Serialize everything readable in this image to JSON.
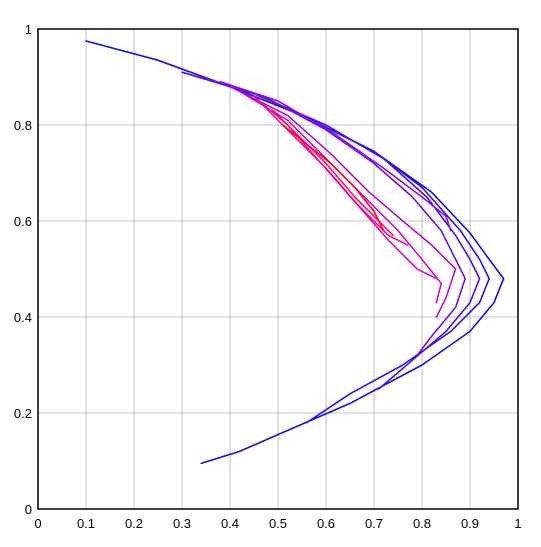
{
  "chart_data": {
    "type": "line",
    "title": "",
    "xlabel": "",
    "ylabel": "",
    "xlim": [
      0,
      1
    ],
    "ylim": [
      0,
      1
    ],
    "grid": true,
    "legend": "none",
    "xticks": [
      "0",
      "0.1",
      "0.2",
      "0.3",
      "0.4",
      "0.5",
      "0.6",
      "0.7",
      "0.8",
      "0.9",
      "1"
    ],
    "yticks": [
      "0",
      "0.2",
      "0.4",
      "0.6",
      "0.8",
      "1"
    ],
    "colors": {
      "background": "#ffffff",
      "grid": "#c0c0c0",
      "frame": "#000000"
    },
    "series": [
      {
        "color": "#1010e0",
        "points": [
          [
            0.1,
            0.975
          ],
          [
            0.25,
            0.935
          ],
          [
            0.4,
            0.88
          ],
          [
            0.55,
            0.82
          ],
          [
            0.7,
            0.745
          ],
          [
            0.82,
            0.66
          ],
          [
            0.9,
            0.575
          ],
          [
            0.94,
            0.52
          ],
          [
            0.97,
            0.48
          ],
          [
            0.95,
            0.43
          ],
          [
            0.9,
            0.37
          ],
          [
            0.8,
            0.3
          ],
          [
            0.65,
            0.22
          ],
          [
            0.5,
            0.155
          ],
          [
            0.42,
            0.12
          ],
          [
            0.34,
            0.095
          ]
        ]
      },
      {
        "color": "#3010e0",
        "points": [
          [
            0.25,
            0.935
          ],
          [
            0.4,
            0.88
          ],
          [
            0.55,
            0.82
          ],
          [
            0.7,
            0.745
          ],
          [
            0.8,
            0.67
          ],
          [
            0.88,
            0.58
          ],
          [
            0.92,
            0.52
          ],
          [
            0.94,
            0.48
          ],
          [
            0.92,
            0.43
          ],
          [
            0.86,
            0.37
          ],
          [
            0.76,
            0.3
          ],
          [
            0.65,
            0.24
          ],
          [
            0.56,
            0.18
          ]
        ]
      },
      {
        "color": "#4a10e0",
        "points": [
          [
            0.3,
            0.91
          ],
          [
            0.45,
            0.865
          ],
          [
            0.6,
            0.8
          ],
          [
            0.72,
            0.73
          ],
          [
            0.81,
            0.65
          ],
          [
            0.87,
            0.57
          ],
          [
            0.9,
            0.52
          ],
          [
            0.92,
            0.48
          ],
          [
            0.9,
            0.43
          ],
          [
            0.85,
            0.37
          ],
          [
            0.78,
            0.31
          ],
          [
            0.71,
            0.25
          ]
        ]
      },
      {
        "color": "#6a10e0",
        "points": [
          [
            0.34,
            0.9
          ],
          [
            0.47,
            0.86
          ],
          [
            0.6,
            0.79
          ],
          [
            0.7,
            0.72
          ],
          [
            0.78,
            0.65
          ],
          [
            0.84,
            0.58
          ],
          [
            0.87,
            0.52
          ],
          [
            0.89,
            0.48
          ],
          [
            0.87,
            0.42
          ],
          [
            0.82,
            0.36
          ],
          [
            0.79,
            0.32
          ]
        ]
      },
      {
        "color": "#8a10e0",
        "points": [
          [
            0.38,
            0.89
          ],
          [
            0.5,
            0.85
          ],
          [
            0.62,
            0.78
          ],
          [
            0.72,
            0.71
          ],
          [
            0.8,
            0.65
          ],
          [
            0.85,
            0.61
          ],
          [
            0.86,
            0.58
          ]
        ]
      },
      {
        "color": "#b010d0",
        "points": [
          [
            0.4,
            0.88
          ],
          [
            0.52,
            0.82
          ],
          [
            0.61,
            0.74
          ],
          [
            0.69,
            0.66
          ],
          [
            0.76,
            0.6
          ],
          [
            0.82,
            0.55
          ],
          [
            0.87,
            0.5
          ],
          [
            0.85,
            0.44
          ],
          [
            0.83,
            0.4
          ]
        ]
      },
      {
        "color": "#c810c8",
        "points": [
          [
            0.42,
            0.87
          ],
          [
            0.52,
            0.81
          ],
          [
            0.6,
            0.73
          ],
          [
            0.68,
            0.65
          ],
          [
            0.75,
            0.58
          ],
          [
            0.8,
            0.52
          ],
          [
            0.84,
            0.47
          ],
          [
            0.83,
            0.43
          ]
        ]
      },
      {
        "color": "#e010b0",
        "points": [
          [
            0.45,
            0.86
          ],
          [
            0.52,
            0.8
          ],
          [
            0.59,
            0.72
          ],
          [
            0.66,
            0.64
          ],
          [
            0.73,
            0.56
          ],
          [
            0.79,
            0.5
          ],
          [
            0.83,
            0.48
          ]
        ]
      },
      {
        "color": "#f01090",
        "points": [
          [
            0.47,
            0.84
          ],
          [
            0.53,
            0.78
          ],
          [
            0.6,
            0.71
          ],
          [
            0.67,
            0.63
          ],
          [
            0.73,
            0.57
          ],
          [
            0.77,
            0.55
          ]
        ]
      },
      {
        "color": "#ff1060",
        "points": [
          [
            0.49,
            0.83
          ],
          [
            0.54,
            0.78
          ],
          [
            0.6,
            0.72
          ],
          [
            0.66,
            0.65
          ],
          [
            0.71,
            0.6
          ],
          [
            0.74,
            0.57
          ]
        ]
      },
      {
        "color": "#ff0030",
        "points": [
          [
            0.51,
            0.8
          ],
          [
            0.56,
            0.76
          ],
          [
            0.61,
            0.72
          ],
          [
            0.66,
            0.67
          ],
          [
            0.7,
            0.62
          ],
          [
            0.72,
            0.58
          ]
        ]
      }
    ]
  }
}
